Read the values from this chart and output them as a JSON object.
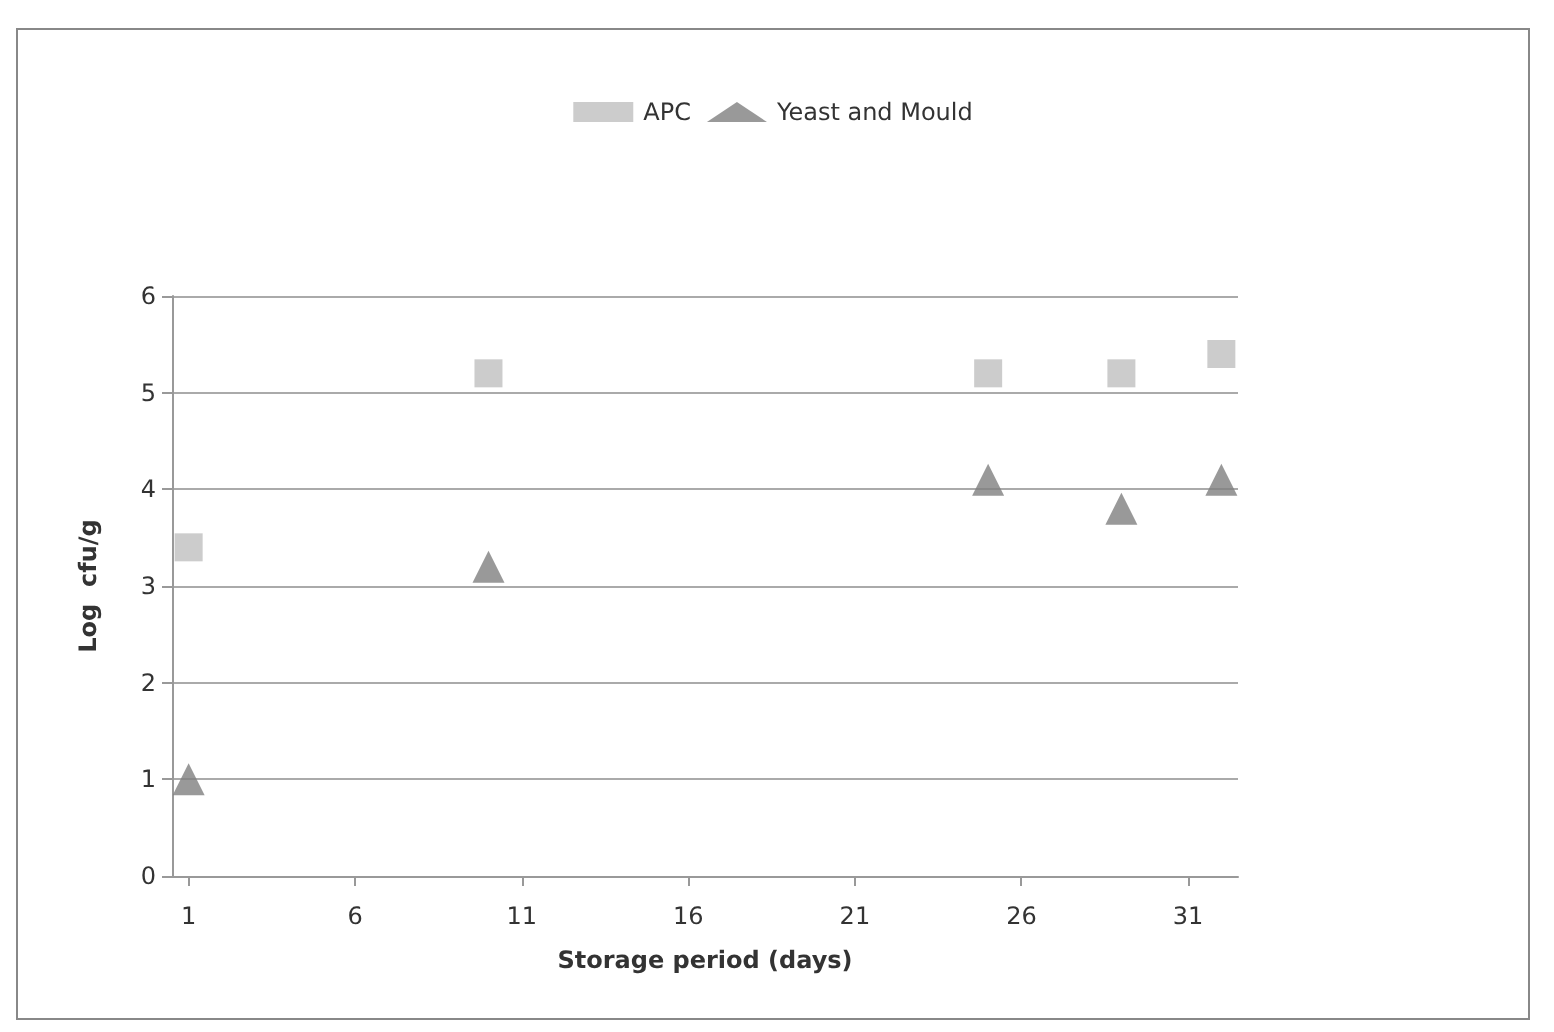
{
  "chart_data": {
    "type": "scatter",
    "xlabel": "Storage period (days)",
    "ylabel": "Log  cfu/g",
    "x": [
      1,
      10,
      25,
      29,
      32
    ],
    "series": [
      {
        "name": "APC",
        "color": "#bfbfbf",
        "marker": "square",
        "values": [
          3.4,
          5.2,
          5.2,
          5.2,
          5.4
        ]
      },
      {
        "name": "Yeast and Mould",
        "color": "#808080",
        "marker": "triangle",
        "values": [
          1.0,
          3.2,
          4.1,
          3.8,
          4.1
        ]
      }
    ],
    "xlim": [
      0.5,
      32.5
    ],
    "xticks": [
      1,
      6,
      11,
      16,
      21,
      26,
      31
    ],
    "ylim": [
      0,
      6
    ],
    "yticks": [
      0,
      1,
      2,
      3,
      4,
      5,
      6
    ],
    "grid": "y",
    "legend": "top"
  }
}
